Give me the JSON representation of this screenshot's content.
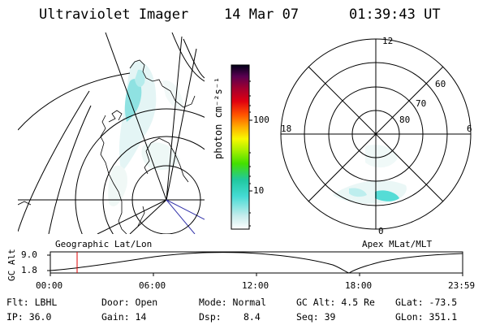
{
  "header": {
    "instrument": "Ultraviolet Imager",
    "date": "14 Mar 07",
    "time": "01:39:43 UT"
  },
  "colorbar": {
    "unit_label": "photon cm⁻²s⁻¹",
    "ticks": [
      "100",
      "10"
    ]
  },
  "polar_plot": {
    "mlt_labels": {
      "top": "12",
      "left": "18",
      "right": "6",
      "bottom": "0"
    },
    "lat_labels": [
      "60",
      "70",
      "80"
    ]
  },
  "orbit_plot": {
    "left_title": "Geographic Lat/Lon",
    "right_title": "Apex MLat/MLT",
    "y_axis_label": "GC Alt",
    "y_ticks": [
      "9.0",
      "1.8"
    ],
    "x_ticks": [
      "00:00",
      "06:00",
      "12:00",
      "18:00",
      "23:59"
    ]
  },
  "status": {
    "row1": {
      "filter": "Flt: LBHL",
      "door": "Door: Open",
      "mode": "Mode: Normal",
      "gc_alt": "GC Alt: 4.5 Re",
      "glat": "GLat: -73.5"
    },
    "row2": {
      "ip": "IP: 36.0",
      "gain": "Gain: 14",
      "dsp_label": "Dsp:",
      "dsp_value": "8.4",
      "seq": "Seq: 39",
      "glon": "GLon: 351.1"
    }
  }
}
